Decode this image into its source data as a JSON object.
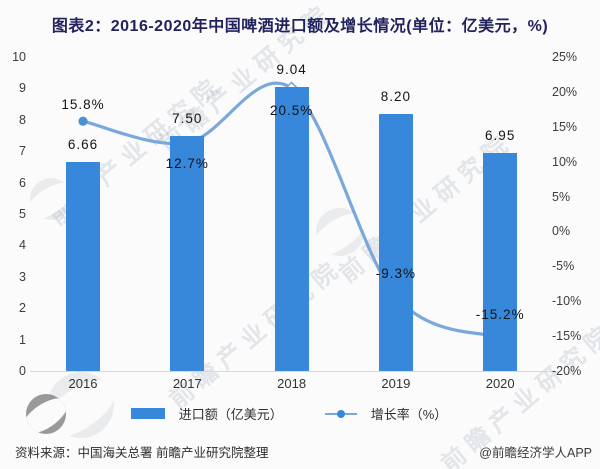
{
  "title": "图表2：2016-2020年中国啤酒进口额及增长情况(单位：亿美元，%)",
  "chart_data": {
    "type": "bar+line combo",
    "categories": [
      "2016",
      "2017",
      "2018",
      "2019",
      "2020"
    ],
    "series": [
      {
        "name": "进口额（亿美元）",
        "type": "bar",
        "axis": "left",
        "color": "#3787db",
        "values": [
          6.66,
          7.5,
          9.04,
          8.2,
          6.95
        ],
        "labels": [
          "6.66",
          "7.50",
          "9.04",
          "8.20",
          "6.95"
        ]
      },
      {
        "name": "增长率（%）",
        "type": "line",
        "axis": "right",
        "color": "#7aa8dd",
        "values": [
          15.8,
          12.7,
          20.5,
          -9.3,
          -15.2
        ],
        "labels": [
          "15.8%",
          "12.7%",
          "20.5%",
          "-9.3%",
          "-15.2%"
        ]
      }
    ],
    "left_axis": {
      "min": 0,
      "max": 10,
      "step": 1,
      "ticks": [
        "0",
        "1",
        "2",
        "3",
        "4",
        "5",
        "6",
        "7",
        "8",
        "9",
        "10"
      ]
    },
    "right_axis": {
      "min": -20,
      "max": 25,
      "step": 5,
      "ticks": [
        "-20%",
        "-15%",
        "-10%",
        "-5%",
        "0%",
        "5%",
        "10%",
        "15%",
        "20%",
        "25%"
      ]
    },
    "grid": false,
    "legend_position": "bottom"
  },
  "legend": {
    "bar_label": "进口额（亿美元）",
    "line_label": "增长率（%）"
  },
  "footer": {
    "source": "资料来源：中国海关总署 前瞻产业研究院整理",
    "credit": "@前瞻经济学人APP"
  },
  "watermark": {
    "text": "前瞻产业研究院"
  },
  "colors": {
    "bar": "#3787db",
    "line": "#7aa8dd",
    "title": "#22225e",
    "axis_line": "#d8d8d8"
  }
}
